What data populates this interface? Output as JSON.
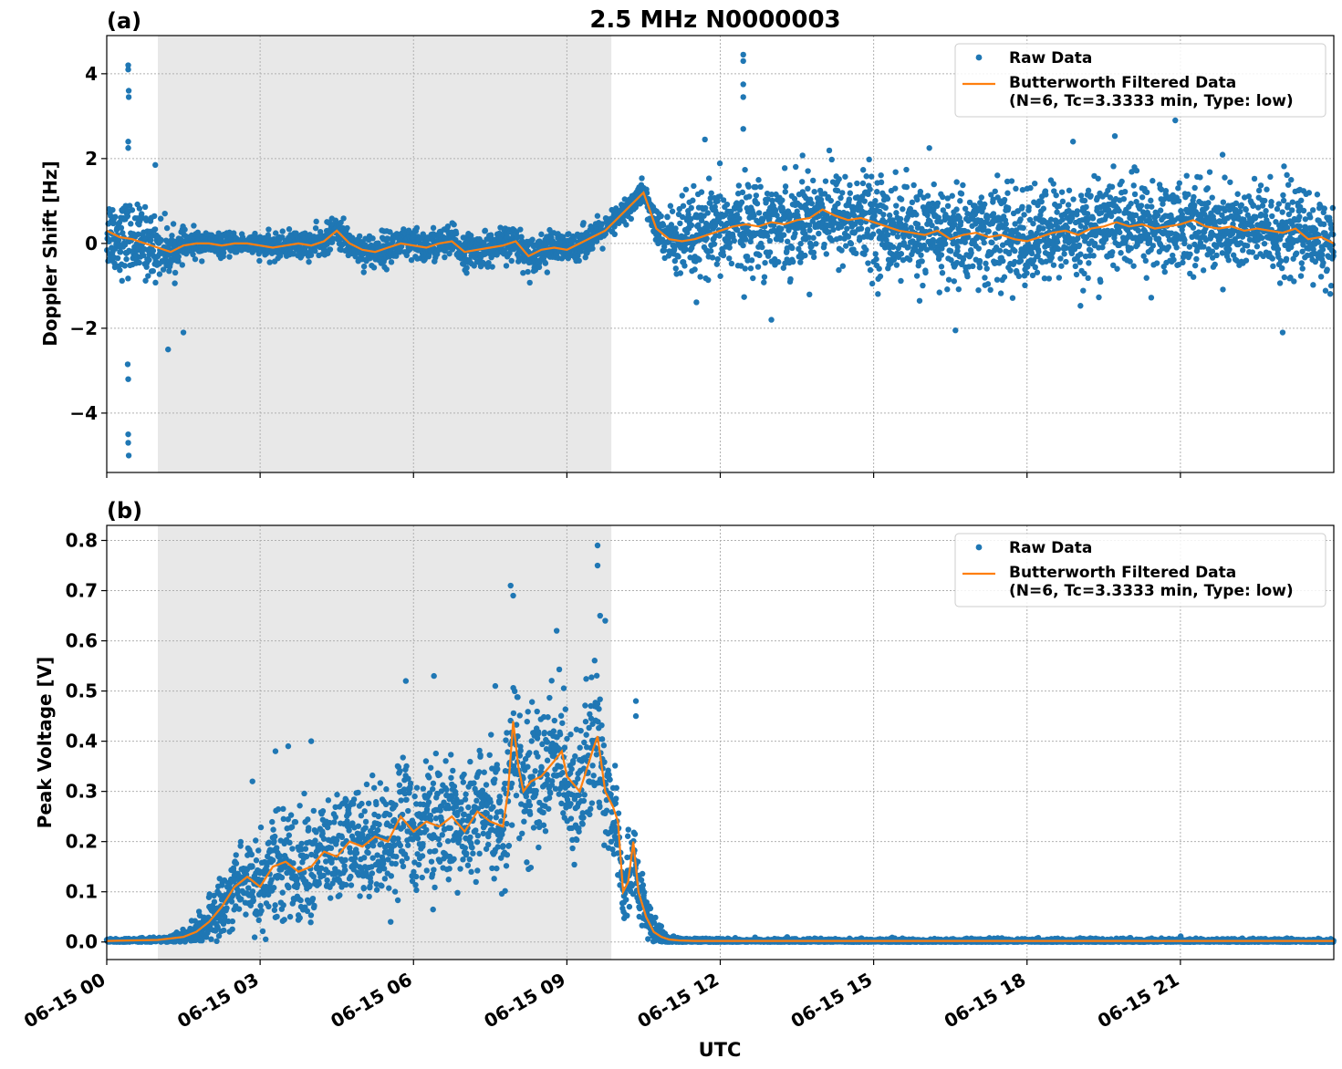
{
  "figure": {
    "title": "2.5 MHz N0000003",
    "xlabel": "UTC"
  },
  "colors": {
    "raw": "#1f77b4",
    "filtered": "#ff7f0e",
    "night_shade": "#e8e8e8",
    "grid": "#b0b0b0"
  },
  "chart_data": [
    {
      "panel": "(a)",
      "type": "scatter",
      "ylabel": "Doppler Shift [Hz]",
      "xlim_hours": [
        0,
        24
      ],
      "ylim": [
        -5.4,
        4.9
      ],
      "xticks": [
        {
          "hour": 0,
          "label": "06-15 00"
        },
        {
          "hour": 3,
          "label": "06-15 03"
        },
        {
          "hour": 6,
          "label": "06-15 06"
        },
        {
          "hour": 9,
          "label": "06-15 09"
        },
        {
          "hour": 12,
          "label": "06-15 12"
        },
        {
          "hour": 15,
          "label": "06-15 15"
        },
        {
          "hour": 18,
          "label": "06-15 18"
        },
        {
          "hour": 21,
          "label": "06-15 21"
        }
      ],
      "yticks": [
        {
          "value": -4,
          "label": "−4"
        },
        {
          "value": -2,
          "label": "−2"
        },
        {
          "value": 0,
          "label": "0"
        },
        {
          "value": 2,
          "label": "2"
        },
        {
          "value": 4,
          "label": "4"
        }
      ],
      "shaded_interval_hours": [
        1.0,
        9.87
      ],
      "legend": {
        "position": "top-right",
        "entries": [
          "Raw Data",
          "Butterworth Filtered Data",
          "(N=6, Tc=3.3333 min, Type: low)"
        ]
      },
      "series": [
        {
          "name": "Butterworth Filtered Data (N=6, Tc=3.3333 min, Type: low)",
          "style": "line",
          "x_hours": [
            0,
            0.25,
            0.5,
            0.75,
            1.0,
            1.25,
            1.5,
            1.75,
            2.0,
            2.25,
            2.5,
            2.75,
            3.0,
            3.25,
            3.5,
            3.75,
            4.0,
            4.25,
            4.5,
            4.75,
            5.0,
            5.25,
            5.5,
            5.75,
            6.0,
            6.25,
            6.5,
            6.75,
            7.0,
            7.25,
            7.5,
            7.75,
            8.0,
            8.25,
            8.5,
            8.75,
            9.0,
            9.25,
            9.5,
            9.75,
            10.0,
            10.25,
            10.5,
            10.75,
            11.0,
            11.25,
            11.5,
            11.75,
            12.0,
            12.25,
            12.5,
            12.75,
            13.0,
            13.25,
            13.5,
            13.75,
            14.0,
            14.25,
            14.5,
            14.75,
            15.0,
            15.25,
            15.5,
            15.75,
            16.0,
            16.25,
            16.5,
            16.75,
            17.0,
            17.25,
            17.5,
            17.75,
            18.0,
            18.25,
            18.5,
            18.75,
            19.0,
            19.25,
            19.5,
            19.75,
            20.0,
            20.25,
            20.5,
            20.75,
            21.0,
            21.25,
            21.5,
            21.75,
            22.0,
            22.25,
            22.5,
            22.75,
            23.0,
            23.25,
            23.5,
            23.75,
            24.0
          ],
          "y": [
            0.3,
            0.15,
            0.1,
            0.0,
            -0.1,
            -0.2,
            -0.05,
            0.0,
            0.0,
            -0.05,
            0.0,
            0.0,
            -0.05,
            -0.1,
            -0.05,
            0.0,
            -0.05,
            0.05,
            0.3,
            0.0,
            -0.15,
            -0.2,
            -0.1,
            0.0,
            -0.05,
            -0.1,
            0.0,
            0.05,
            -0.2,
            -0.15,
            -0.1,
            -0.05,
            0.05,
            -0.3,
            -0.15,
            -0.1,
            -0.15,
            0.0,
            0.15,
            0.3,
            0.6,
            0.9,
            1.2,
            0.35,
            0.1,
            0.05,
            0.1,
            0.2,
            0.3,
            0.4,
            0.45,
            0.4,
            0.5,
            0.45,
            0.55,
            0.6,
            0.8,
            0.65,
            0.55,
            0.6,
            0.5,
            0.4,
            0.3,
            0.25,
            0.2,
            0.3,
            0.1,
            0.2,
            0.25,
            0.15,
            0.2,
            0.1,
            0.05,
            0.15,
            0.25,
            0.3,
            0.2,
            0.35,
            0.4,
            0.5,
            0.4,
            0.45,
            0.35,
            0.4,
            0.45,
            0.55,
            0.4,
            0.35,
            0.4,
            0.3,
            0.35,
            0.3,
            0.25,
            0.35,
            0.1,
            0.15,
            0.0
          ]
        },
        {
          "name": "Raw Data",
          "style": "scatter",
          "spread_x_hours": [
            0,
            0.5,
            0.9,
            1.5,
            2.5,
            4.0,
            5.5,
            7.0,
            8.5,
            9.5,
            10.4,
            10.8,
            11.2,
            13.0,
            15.0,
            17.0,
            19.0,
            21.0,
            23.0,
            24.0
          ],
          "spread_hz": [
            0.8,
            0.75,
            0.7,
            0.3,
            0.2,
            0.3,
            0.35,
            0.35,
            0.35,
            0.3,
            0.25,
            0.4,
            0.9,
            0.95,
            1.0,
            1.05,
            1.0,
            0.95,
            0.95,
            0.95
          ],
          "outliers": [
            {
              "x_hours": 0.42,
              "y": 4.2
            },
            {
              "x_hours": 0.42,
              "y": 4.1
            },
            {
              "x_hours": 0.43,
              "y": 3.6
            },
            {
              "x_hours": 0.43,
              "y": 3.45
            },
            {
              "x_hours": 0.42,
              "y": 2.4
            },
            {
              "x_hours": 0.42,
              "y": 2.25
            },
            {
              "x_hours": 0.41,
              "y": -2.85
            },
            {
              "x_hours": 0.42,
              "y": -3.2
            },
            {
              "x_hours": 0.42,
              "y": -4.5
            },
            {
              "x_hours": 0.42,
              "y": -4.7
            },
            {
              "x_hours": 0.43,
              "y": -5.0
            },
            {
              "x_hours": 0.95,
              "y": 1.85
            },
            {
              "x_hours": 1.2,
              "y": -2.5
            },
            {
              "x_hours": 1.5,
              "y": -2.1
            },
            {
              "x_hours": 12.45,
              "y": 4.45
            },
            {
              "x_hours": 12.45,
              "y": 4.3
            },
            {
              "x_hours": 12.45,
              "y": 3.75
            },
            {
              "x_hours": 12.45,
              "y": 3.45
            },
            {
              "x_hours": 12.45,
              "y": 2.7
            },
            {
              "x_hours": 11.7,
              "y": 2.45
            },
            {
              "x_hours": 20.9,
              "y": 2.9
            },
            {
              "x_hours": 18.9,
              "y": 2.4
            },
            {
              "x_hours": 23.0,
              "y": -2.1
            },
            {
              "x_hours": 13.0,
              "y": -1.8
            },
            {
              "x_hours": 16.6,
              "y": -2.05
            }
          ]
        }
      ]
    },
    {
      "panel": "(b)",
      "type": "scatter",
      "ylabel": "Peak Voltage [V]",
      "xlim_hours": [
        0,
        24
      ],
      "ylim": [
        -0.035,
        0.83
      ],
      "xticks": [
        {
          "hour": 0,
          "label": "06-15 00"
        },
        {
          "hour": 3,
          "label": "06-15 03"
        },
        {
          "hour": 6,
          "label": "06-15 06"
        },
        {
          "hour": 9,
          "label": "06-15 09"
        },
        {
          "hour": 12,
          "label": "06-15 12"
        },
        {
          "hour": 15,
          "label": "06-15 15"
        },
        {
          "hour": 18,
          "label": "06-15 18"
        },
        {
          "hour": 21,
          "label": "06-15 21"
        }
      ],
      "yticks": [
        {
          "value": 0.0,
          "label": "0.0"
        },
        {
          "value": 0.1,
          "label": "0.1"
        },
        {
          "value": 0.2,
          "label": "0.2"
        },
        {
          "value": 0.3,
          "label": "0.3"
        },
        {
          "value": 0.4,
          "label": "0.4"
        },
        {
          "value": 0.5,
          "label": "0.5"
        },
        {
          "value": 0.6,
          "label": "0.6"
        },
        {
          "value": 0.7,
          "label": "0.7"
        },
        {
          "value": 0.8,
          "label": "0.8"
        }
      ],
      "shaded_interval_hours": [
        1.0,
        9.87
      ],
      "legend": {
        "position": "top-right",
        "entries": [
          "Raw Data",
          "Butterworth Filtered Data",
          "(N=6, Tc=3.3333 min, Type: low)"
        ]
      },
      "series": [
        {
          "name": "Butterworth Filtered Data (N=6, Tc=3.3333 min, Type: low)",
          "style": "line",
          "x_hours": [
            0,
            1.0,
            1.5,
            1.75,
            2.0,
            2.25,
            2.5,
            2.75,
            3.0,
            3.25,
            3.5,
            3.75,
            4.0,
            4.25,
            4.5,
            4.75,
            5.0,
            5.25,
            5.5,
            5.75,
            6.0,
            6.25,
            6.5,
            6.75,
            7.0,
            7.25,
            7.5,
            7.75,
            7.85,
            7.95,
            8.05,
            8.15,
            8.3,
            8.5,
            8.75,
            8.9,
            9.0,
            9.25,
            9.5,
            9.6,
            9.75,
            9.9,
            10.0,
            10.1,
            10.2,
            10.3,
            10.4,
            10.55,
            10.7,
            10.85,
            11.0,
            11.2,
            11.5,
            12.0,
            24.0
          ],
          "y": [
            0.002,
            0.004,
            0.01,
            0.02,
            0.04,
            0.07,
            0.11,
            0.13,
            0.11,
            0.15,
            0.16,
            0.14,
            0.15,
            0.18,
            0.17,
            0.2,
            0.19,
            0.21,
            0.2,
            0.25,
            0.22,
            0.24,
            0.23,
            0.25,
            0.22,
            0.26,
            0.24,
            0.23,
            0.3,
            0.44,
            0.35,
            0.3,
            0.32,
            0.33,
            0.36,
            0.38,
            0.33,
            0.3,
            0.38,
            0.41,
            0.3,
            0.27,
            0.24,
            0.1,
            0.12,
            0.2,
            0.1,
            0.05,
            0.02,
            0.01,
            0.005,
            0.003,
            0.002,
            0.002,
            0.002
          ]
        },
        {
          "name": "Raw Data",
          "style": "scatter",
          "spread_x_hours": [
            0,
            1.0,
            1.5,
            2.0,
            2.5,
            3.0,
            4.0,
            5.0,
            6.0,
            7.0,
            7.8,
            8.5,
            9.0,
            9.5,
            9.8,
            10.0,
            10.4,
            10.8,
            11.0,
            12.0,
            24.0
          ],
          "spread_v": [
            0.003,
            0.004,
            0.01,
            0.035,
            0.07,
            0.085,
            0.1,
            0.1,
            0.11,
            0.1,
            0.12,
            0.13,
            0.12,
            0.13,
            0.12,
            0.09,
            0.06,
            0.015,
            0.006,
            0.004,
            0.004
          ],
          "outliers": [
            {
              "x_hours": 7.9,
              "y": 0.71
            },
            {
              "x_hours": 7.95,
              "y": 0.69
            },
            {
              "x_hours": 9.6,
              "y": 0.79
            },
            {
              "x_hours": 9.6,
              "y": 0.75
            },
            {
              "x_hours": 9.65,
              "y": 0.65
            },
            {
              "x_hours": 9.75,
              "y": 0.64
            },
            {
              "x_hours": 10.35,
              "y": 0.48
            },
            {
              "x_hours": 10.35,
              "y": 0.45
            },
            {
              "x_hours": 6.4,
              "y": 0.53
            },
            {
              "x_hours": 5.85,
              "y": 0.52
            },
            {
              "x_hours": 3.3,
              "y": 0.38
            },
            {
              "x_hours": 3.55,
              "y": 0.39
            },
            {
              "x_hours": 4.0,
              "y": 0.4
            },
            {
              "x_hours": 2.85,
              "y": 0.32
            },
            {
              "x_hours": 7.6,
              "y": 0.51
            },
            {
              "x_hours": 8.8,
              "y": 0.62
            }
          ]
        }
      ]
    }
  ]
}
